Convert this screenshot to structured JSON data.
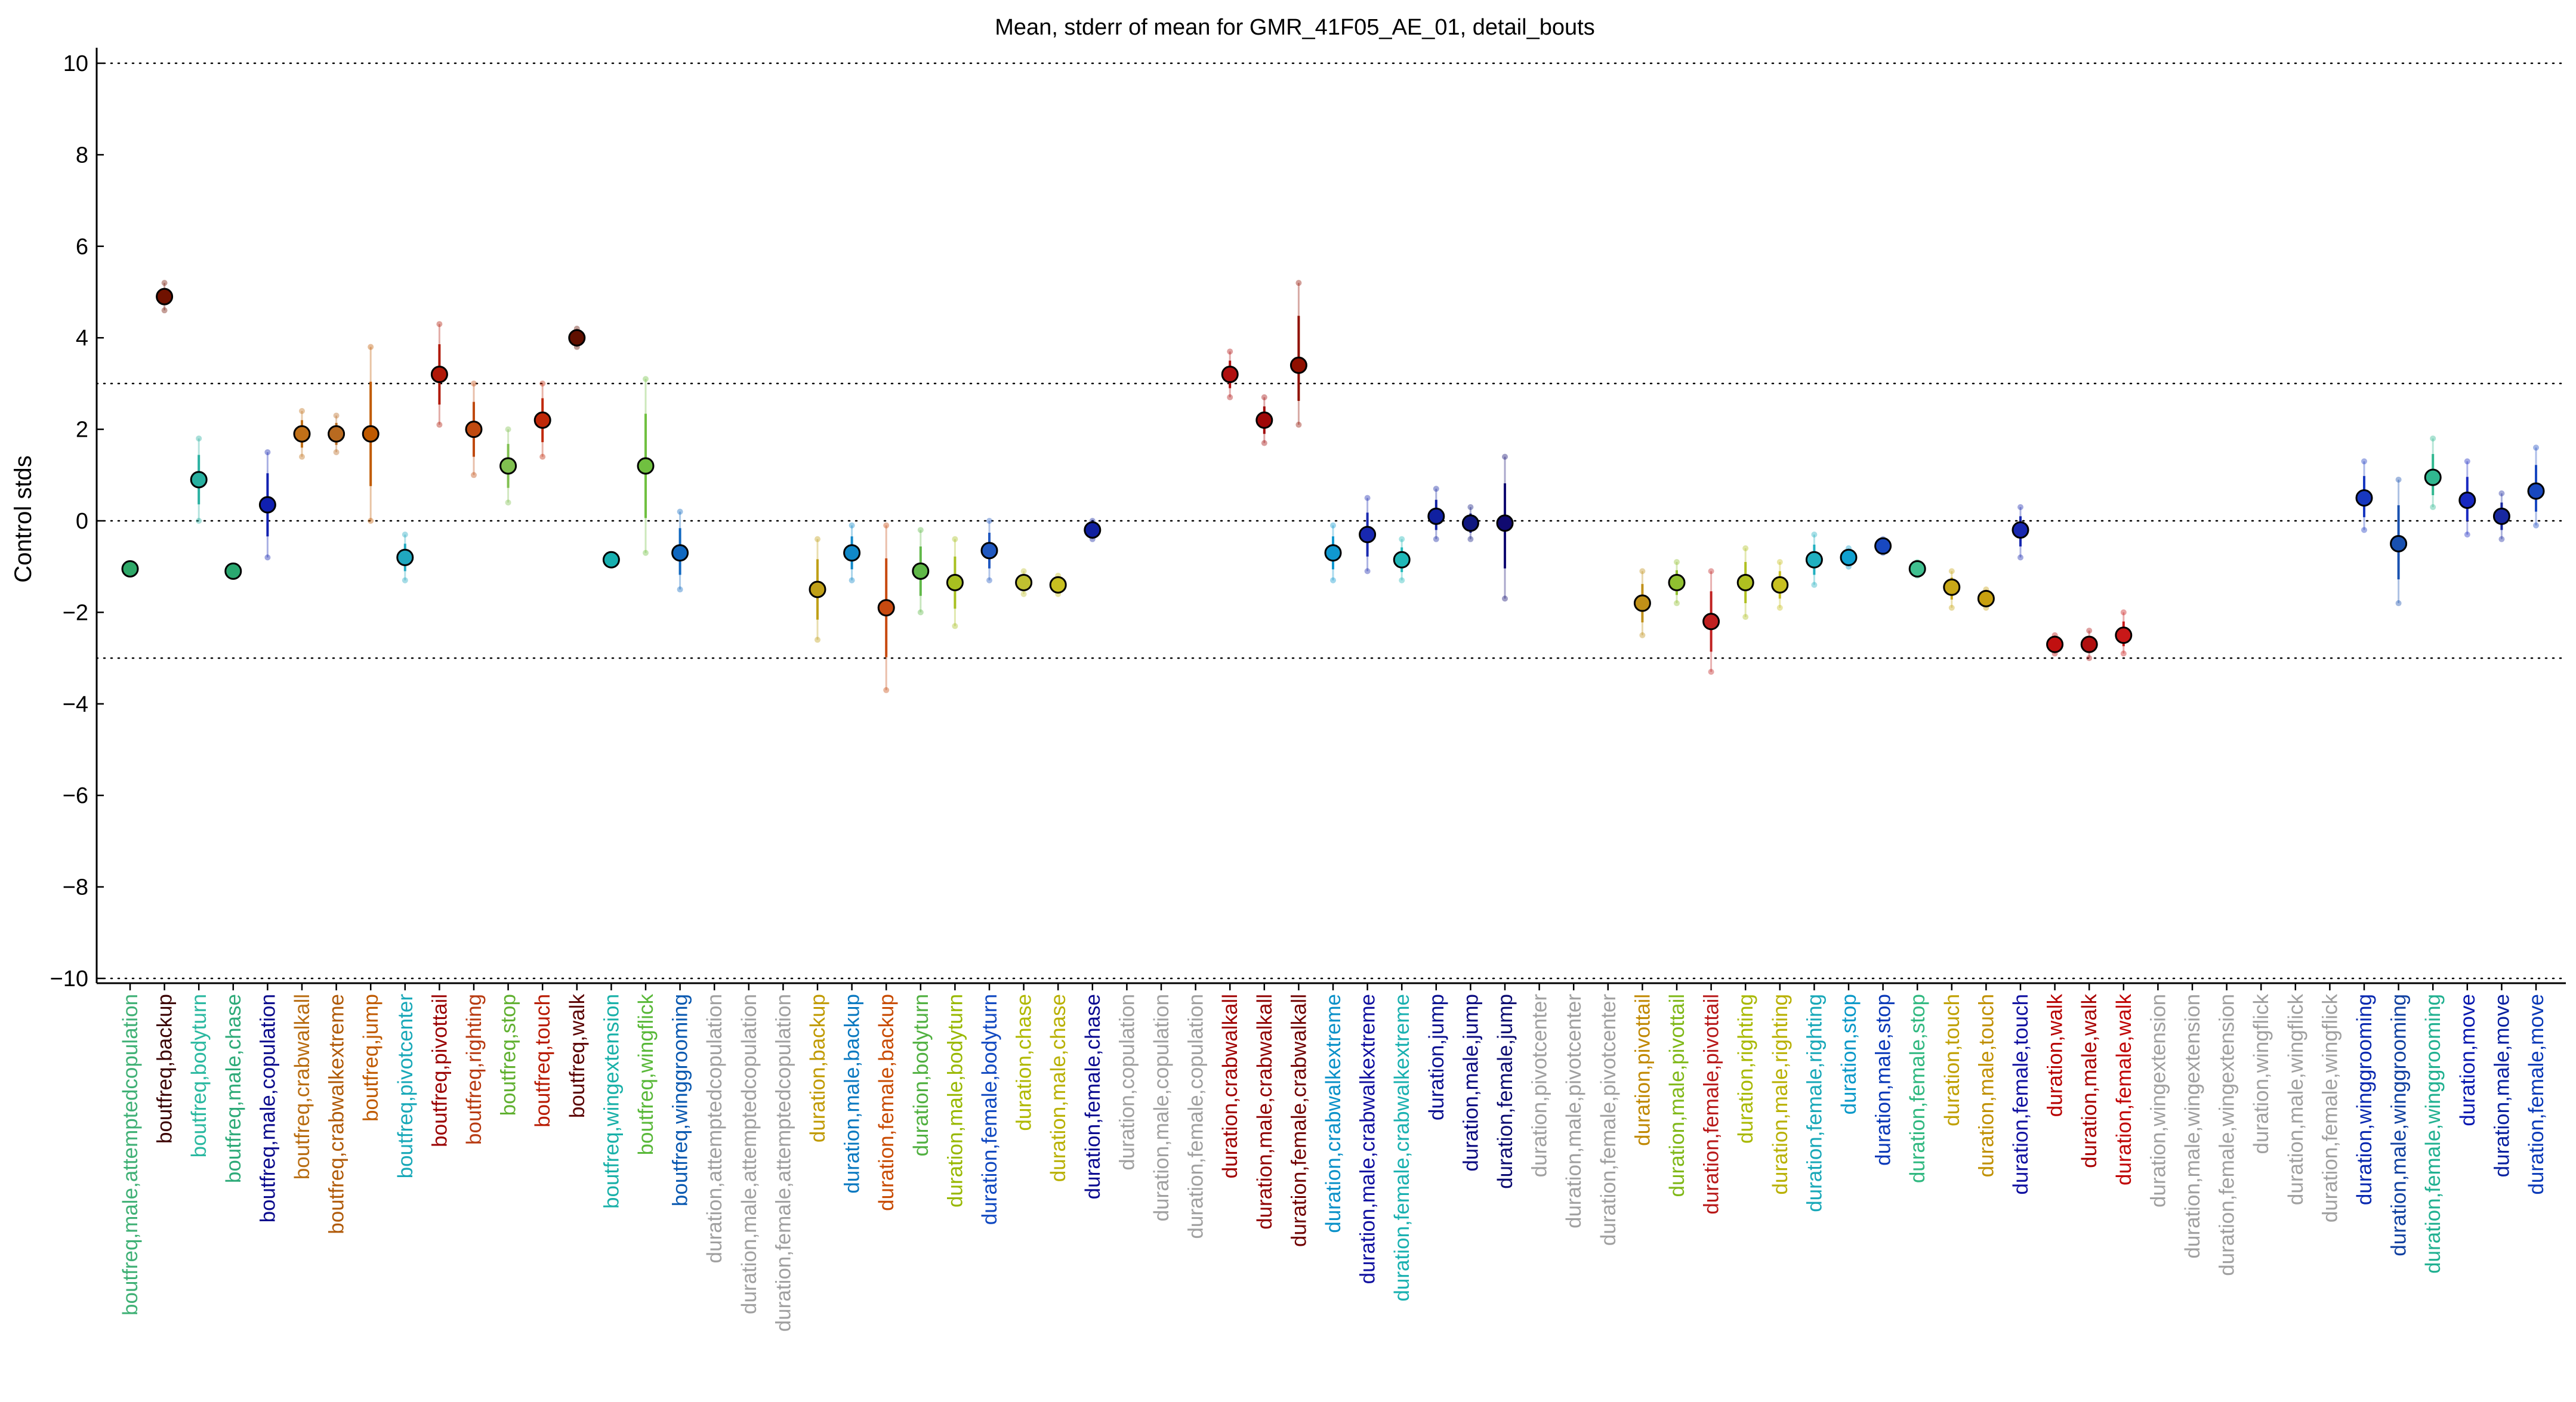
{
  "chart_data": {
    "type": "scatter",
    "title": "Mean, stderr of mean for GMR_41F05_AE_01, detail_bouts",
    "xlabel": "",
    "ylabel": "Control stds",
    "ylim": [
      -10,
      10
    ],
    "yticks": [
      -10,
      -8,
      -6,
      -4,
      -2,
      0,
      2,
      4,
      6,
      8,
      10
    ],
    "reference_lines": [
      -10,
      -3,
      0,
      3,
      10
    ],
    "grid": false,
    "categories": [
      "boutfreq,male,attemptedcopulation",
      "boutfreq,backup",
      "boutfreq,bodyturn",
      "boutfreq,male,chase",
      "boutfreq,male,copulation",
      "boutfreq,crabwalkall",
      "boutfreq,crabwalkextreme",
      "boutfreq,jump",
      "boutfreq,pivotcenter",
      "boutfreq,pivottail",
      "boutfreq,righting",
      "boutfreq,stop",
      "boutfreq,touch",
      "boutfreq,walk",
      "boutfreq,wingextension",
      "boutfreq,wingflick",
      "boutfreq,winggrooming",
      "duration,attemptedcopulation",
      "duration,male,attemptedcopulation",
      "duration,female,attemptedcopulation",
      "duration,backup",
      "duration,male,backup",
      "duration,female,backup",
      "duration,bodyturn",
      "duration,male,bodyturn",
      "duration,female,bodyturn",
      "duration,chase",
      "duration,male,chase",
      "duration,female,chase",
      "duration,copulation",
      "duration,male,copulation",
      "duration,female,copulation",
      "duration,crabwalkall",
      "duration,male,crabwalkall",
      "duration,female,crabwalkall",
      "duration,crabwalkextreme",
      "duration,male,crabwalkextreme",
      "duration,female,crabwalkextreme",
      "duration,jump",
      "duration,male,jump",
      "duration,female,jump",
      "duration,pivotcenter",
      "duration,male,pivotcenter",
      "duration,female,pivotcenter",
      "duration,pivottail",
      "duration,male,pivottail",
      "duration,female,pivottail",
      "duration,righting",
      "duration,male,righting",
      "duration,female,righting",
      "duration,stop",
      "duration,male,stop",
      "duration,female,stop",
      "duration,touch",
      "duration,male,touch",
      "duration,female,touch",
      "duration,walk",
      "duration,male,walk",
      "duration,female,walk",
      "duration,wingextension",
      "duration,male,wingextension",
      "duration,female,wingextension",
      "duration,wingflick",
      "duration,male,wingflick",
      "duration,female,wingflick",
      "duration,winggrooming",
      "duration,male,winggrooming",
      "duration,female,winggrooming",
      "duration,move",
      "duration,male,move",
      "duration,female,move"
    ],
    "label_colors": [
      "#3fb075",
      "#3a0000",
      "#2ab8a0",
      "#2daa78",
      "#0a0a8c",
      "#b86c10",
      "#b05a08",
      "#c05a00",
      "#18a8b8",
      "#9a0000",
      "#b83a10",
      "#60b030",
      "#b81a00",
      "#5a0000",
      "#18b0a8",
      "#58b838",
      "#0858b0",
      "#a0a0a0",
      "#a0a0a0",
      "#a0a0a0",
      "#c09a00",
      "#0878c0",
      "#c84a00",
      "#50b040",
      "#98b800",
      "#1048c0",
      "#b0b800",
      "#b8b000",
      "#0a0a90",
      "#a0a0a0",
      "#a0a0a0",
      "#a0a0a0",
      "#a00000",
      "#900000",
      "#700000",
      "#0890c8",
      "#1010a0",
      "#18b0b0",
      "#0a1090",
      "#0a0a80",
      "#0a0a70",
      "#a0a0a0",
      "#a0a0a0",
      "#a0a0a0",
      "#c08800",
      "#80b818",
      "#b81818",
      "#a8b800",
      "#b8b000",
      "#18a8b8",
      "#0898c8",
      "#0838b8",
      "#30b880",
      "#c0a000",
      "#c09000",
      "#1010a0",
      "#b80000",
      "#a80000",
      "#c00000",
      "#a0a0a0",
      "#a0a0a0",
      "#a0a0a0",
      "#a0a0a0",
      "#a0a0a0",
      "#a0a0a0",
      "#0828b0",
      "#1040a0",
      "#20b090",
      "#0818b0",
      "#0820a0",
      "#0838b8"
    ],
    "series": [
      {
        "values": [
          -1.05,
          4.9,
          0.9,
          -1.1,
          0.35,
          1.9,
          1.9,
          1.9,
          -0.8,
          3.2,
          2.0,
          1.2,
          2.2,
          4.0,
          -0.85,
          1.2,
          -0.7,
          null,
          null,
          null,
          -1.5,
          -0.7,
          -1.9,
          -1.1,
          -1.35,
          -0.65,
          -1.35,
          -1.4,
          -0.2,
          null,
          null,
          null,
          3.2,
          2.2,
          3.4,
          -0.7,
          -0.3,
          -0.85,
          0.1,
          -0.05,
          -0.05,
          null,
          null,
          null,
          -1.8,
          -1.35,
          -2.2,
          -1.35,
          -1.4,
          -0.85,
          -0.8,
          -0.55,
          -1.05,
          -1.45,
          -1.7,
          -0.2,
          -2.7,
          -2.7,
          -2.5,
          null,
          null,
          null,
          null,
          null,
          null,
          0.5,
          -0.5,
          0.95,
          0.45,
          0.1,
          0.65
        ],
        "err_low": [
          null,
          4.6,
          0.0,
          null,
          -0.8,
          1.4,
          1.5,
          0.0,
          -1.3,
          2.1,
          1.0,
          0.4,
          1.4,
          3.8,
          null,
          -0.7,
          -1.5,
          null,
          null,
          null,
          -2.6,
          -1.3,
          -3.7,
          -2.0,
          -2.3,
          -1.3,
          -1.6,
          -1.6,
          -0.4,
          null,
          null,
          null,
          2.7,
          1.7,
          2.1,
          -1.3,
          -1.1,
          -1.3,
          -0.4,
          -0.4,
          -1.7,
          null,
          null,
          null,
          -2.5,
          -1.8,
          -3.3,
          -2.1,
          -1.9,
          -1.4,
          -1.0,
          -0.7,
          -1.2,
          -1.9,
          -1.9,
          -0.8,
          -2.9,
          -3.0,
          -2.9,
          null,
          null,
          null,
          null,
          null,
          null,
          -0.2,
          -1.8,
          0.3,
          -0.3,
          -0.4,
          -0.1
        ],
        "err_high": [
          null,
          5.2,
          1.8,
          null,
          1.5,
          2.4,
          2.3,
          3.8,
          -0.3,
          4.3,
          3.0,
          2.0,
          3.0,
          4.2,
          null,
          3.1,
          0.2,
          null,
          null,
          null,
          -0.4,
          -0.1,
          -0.1,
          -0.2,
          -0.4,
          0.0,
          -1.1,
          -1.2,
          0.0,
          null,
          null,
          null,
          3.7,
          2.7,
          5.2,
          -0.1,
          0.5,
          -0.4,
          0.7,
          0.3,
          1.4,
          null,
          null,
          null,
          -1.1,
          -0.9,
          -1.1,
          -0.6,
          -0.9,
          -0.3,
          -0.6,
          -0.4,
          -0.9,
          -1.1,
          -1.5,
          0.3,
          -2.5,
          -2.4,
          -2.0,
          null,
          null,
          null,
          null,
          null,
          null,
          1.3,
          0.9,
          1.8,
          1.3,
          0.6,
          1.6
        ],
        "marker_colors": [
          "#2ea868",
          "#701200",
          "#28b0a0",
          "#2aa870",
          "#1020b0",
          "#c07018",
          "#b86a20",
          "#c05a00",
          "#20a8c0",
          "#b01808",
          "#c04a10",
          "#80c050",
          "#c02808",
          "#601000",
          "#18b0b0",
          "#70c040",
          "#1068c0",
          null,
          null,
          null,
          "#c0a018",
          "#1088c8",
          "#c84a10",
          "#60b848",
          "#a8c020",
          "#2058c0",
          "#c0c030",
          "#c8c020",
          "#1020a0",
          null,
          null,
          null,
          "#b01010",
          "#a00808",
          "#901000",
          "#1098d0",
          "#1828b0",
          "#20b8b8",
          "#1020a0",
          "#101880",
          "#100a70",
          null,
          null,
          null,
          "#c09018",
          "#90c030",
          "#c02020",
          "#b0c020",
          "#c8c020",
          "#20b0c0",
          "#10a0d0",
          "#1848c0",
          "#40c090",
          "#c8a818",
          "#c8a010",
          "#1828b0",
          "#c01010",
          "#b01010",
          "#c81818",
          null,
          null,
          null,
          null,
          null,
          null,
          "#1838c0",
          "#1850b0",
          "#30b890",
          "#1828c0",
          "#1828a0",
          "#1848c0"
        ]
      }
    ]
  }
}
